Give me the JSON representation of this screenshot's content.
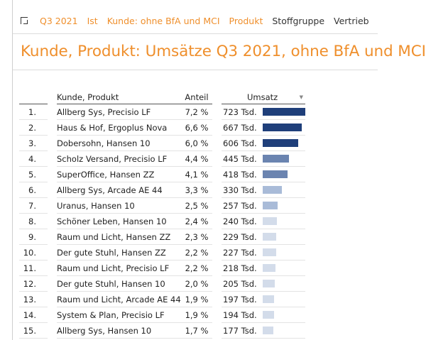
{
  "toolbar": {
    "period": "Q3 2021",
    "scenario": "Ist",
    "filter_customer": "Kunde:  ohne BfA und MCI",
    "dim_product": "Produkt",
    "dim_material": "Stoffgruppe",
    "dim_sales": "Vertrieb"
  },
  "report": {
    "title": "Kunde, Produkt: Umsätze Q3 2021, ohne BfA und MCI",
    "columns": {
      "name": "Kunde, Produkt",
      "share": "Anteil",
      "sales": "Umsatz"
    },
    "max_sales": 723,
    "colors": {
      "accent": "#ef8f2c",
      "bar_dark": "#1f3f7a",
      "bar_mid": "#6b84b0",
      "bar_light": "#a9bbd8",
      "bar_pale": "#d3dcea"
    },
    "rows": [
      {
        "rank": "1.",
        "name": "Allberg Sys, Precisio LF",
        "share": "7,2 %",
        "sales_label": "723 Tsd.",
        "sales": 723,
        "shade": "bar_dark"
      },
      {
        "rank": "2.",
        "name": "Haus & Hof, Ergoplus Nova",
        "share": "6,6 %",
        "sales_label": "667 Tsd.",
        "sales": 667,
        "shade": "bar_dark"
      },
      {
        "rank": "3.",
        "name": "Dobersohn, Hansen 10",
        "share": "6,0 %",
        "sales_label": "606 Tsd.",
        "sales": 606,
        "shade": "bar_dark"
      },
      {
        "rank": "4.",
        "name": "Scholz Versand, Precisio LF",
        "share": "4,4 %",
        "sales_label": "445 Tsd.",
        "sales": 445,
        "shade": "bar_mid"
      },
      {
        "rank": "5.",
        "name": "SuperOffice, Hansen ZZ",
        "share": "4,1 %",
        "sales_label": "418 Tsd.",
        "sales": 418,
        "shade": "bar_mid"
      },
      {
        "rank": "6.",
        "name": "Allberg Sys, Arcade AE 44",
        "share": "3,3 %",
        "sales_label": "330 Tsd.",
        "sales": 330,
        "shade": "bar_light"
      },
      {
        "rank": "7.",
        "name": "Uranus, Hansen 10",
        "share": "2,5 %",
        "sales_label": "257 Tsd.",
        "sales": 257,
        "shade": "bar_light"
      },
      {
        "rank": "8.",
        "name": "Schöner Leben, Hansen 10",
        "share": "2,4 %",
        "sales_label": "240 Tsd.",
        "sales": 240,
        "shade": "bar_pale"
      },
      {
        "rank": "9.",
        "name": "Raum und Licht, Hansen ZZ",
        "share": "2,3 %",
        "sales_label": "229 Tsd.",
        "sales": 229,
        "shade": "bar_pale"
      },
      {
        "rank": "10.",
        "name": "Der gute Stuhl, Hansen ZZ",
        "share": "2,2 %",
        "sales_label": "227 Tsd.",
        "sales": 227,
        "shade": "bar_pale"
      },
      {
        "rank": "11.",
        "name": "Raum und Licht, Precisio LF",
        "share": "2,2 %",
        "sales_label": "218 Tsd.",
        "sales": 218,
        "shade": "bar_pale"
      },
      {
        "rank": "12.",
        "name": "Der gute Stuhl, Hansen 10",
        "share": "2,0 %",
        "sales_label": "205 Tsd.",
        "sales": 205,
        "shade": "bar_pale"
      },
      {
        "rank": "13.",
        "name": "Raum und Licht, Arcade AE 44",
        "share": "1,9 %",
        "sales_label": "197 Tsd.",
        "sales": 197,
        "shade": "bar_pale"
      },
      {
        "rank": "14.",
        "name": "System & Plan, Precisio LF",
        "share": "1,9 %",
        "sales_label": "194 Tsd.",
        "sales": 194,
        "shade": "bar_pale"
      },
      {
        "rank": "15.",
        "name": "Allberg Sys, Hansen 10",
        "share": "1,7 %",
        "sales_label": "177 Tsd.",
        "sales": 177,
        "shade": "bar_pale"
      }
    ]
  }
}
